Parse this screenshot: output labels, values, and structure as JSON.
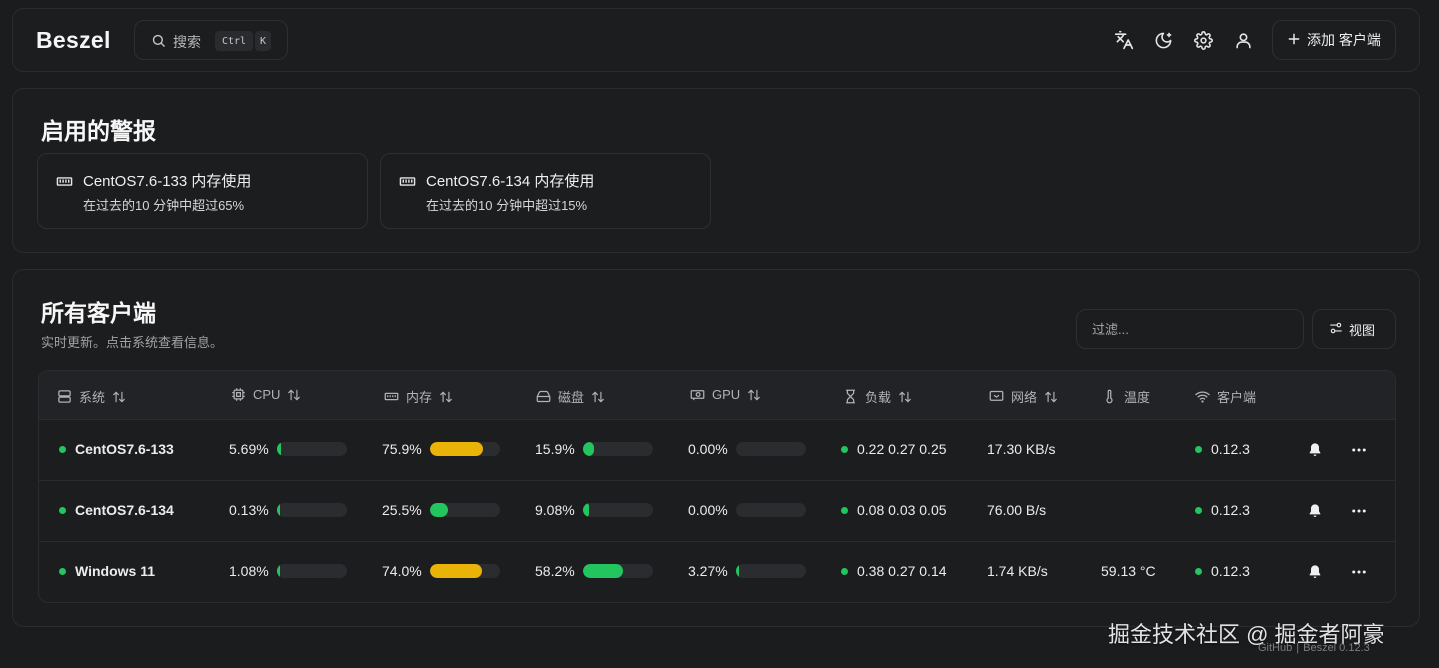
{
  "header": {
    "logo": "Beszel",
    "search_label": "搜索",
    "kbd_ctrl": "Ctrl",
    "kbd_k": "K",
    "add_client_label": "添加 客户端"
  },
  "alerts": {
    "title": "启用的警报",
    "items": [
      {
        "title": "CentOS7.6-133 内存使用",
        "desc": "在过去的10 分钟中超过65%"
      },
      {
        "title": "CentOS7.6-134 内存使用",
        "desc": "在过去的10 分钟中超过15%"
      }
    ]
  },
  "systems": {
    "title": "所有客户端",
    "subtitle": "实时更新。点击系统查看信息。",
    "filter_placeholder": "过滤...",
    "view_label": "视图",
    "columns": [
      "系统",
      "CPU",
      "内存",
      "磁盘",
      "GPU",
      "负载",
      "网络",
      "温度",
      "客户端"
    ],
    "rows": [
      {
        "name": "CentOS7.6-133",
        "cpu": "5.69%",
        "cpu_pct": 5.69,
        "mem": "75.9%",
        "mem_pct": 75.9,
        "disk": "15.9%",
        "disk_pct": 15.9,
        "gpu": "0.00%",
        "gpu_pct": 0,
        "load": "0.22 0.27 0.25",
        "net": "17.30 KB/s",
        "temp": "",
        "agent": "0.12.3"
      },
      {
        "name": "CentOS7.6-134",
        "cpu": "0.13%",
        "cpu_pct": 0.13,
        "mem": "25.5%",
        "mem_pct": 25.5,
        "disk": "9.08%",
        "disk_pct": 9.08,
        "gpu": "0.00%",
        "gpu_pct": 0,
        "load": "0.08 0.03 0.05",
        "net": "76.00 B/s",
        "temp": "",
        "agent": "0.12.3"
      },
      {
        "name": "Windows 11",
        "cpu": "1.08%",
        "cpu_pct": 1.08,
        "mem": "74.0%",
        "mem_pct": 74.0,
        "disk": "58.2%",
        "disk_pct": 58.2,
        "gpu": "3.27%",
        "gpu_pct": 3.27,
        "load": "0.38 0.27 0.14",
        "net": "1.74 KB/s",
        "temp": "59.13 °C",
        "agent": "0.12.3"
      }
    ]
  },
  "colors": {
    "green": "#22c55e",
    "yellow": "#eab308",
    "bar_bg": "#2b2c30"
  },
  "watermark": "掘金技术社区 @ 掘金者阿豪",
  "footer": {
    "github": "GitHub",
    "sep": "|",
    "version": "Beszel 0.12.3"
  }
}
